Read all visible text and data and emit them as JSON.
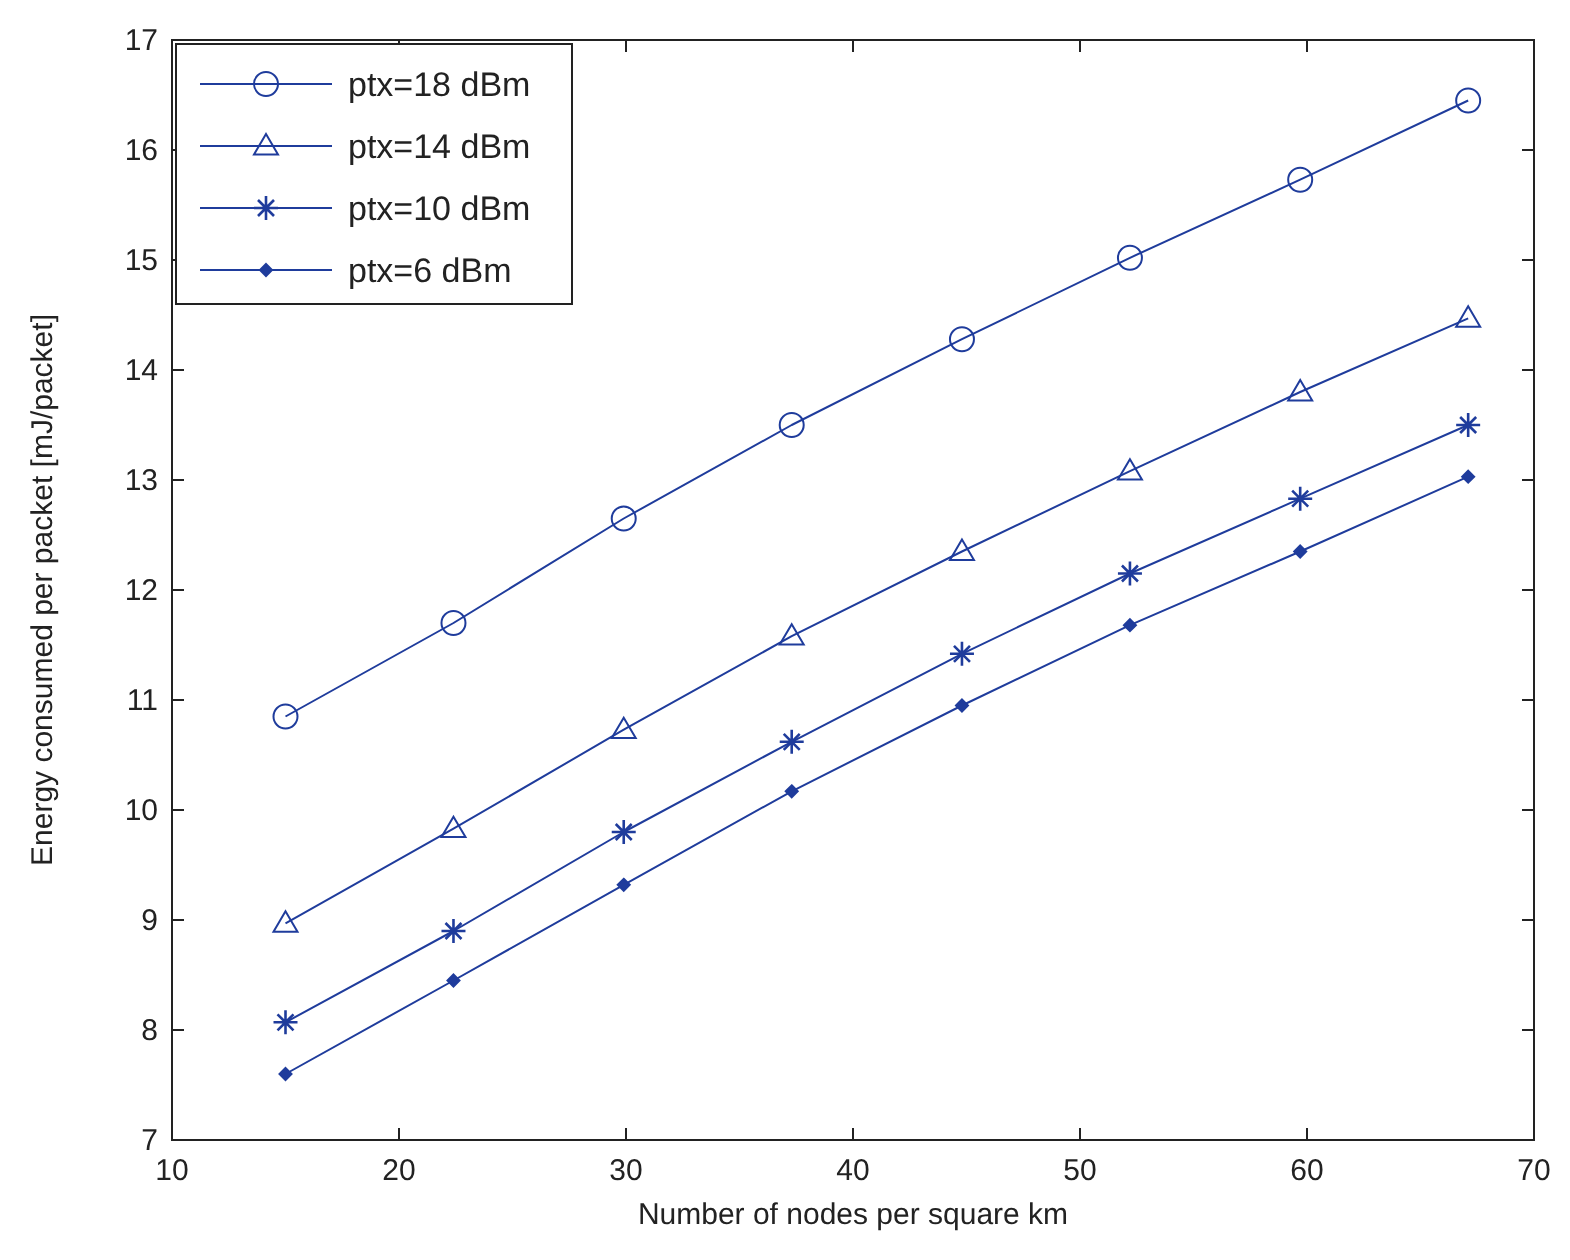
{
  "chart_data": {
    "type": "line",
    "xlabel": "Number of nodes per square km",
    "ylabel": "Energy consumed per packet [mJ/packet]",
    "x": [
      15,
      22.4,
      29.9,
      37.3,
      44.8,
      52.2,
      59.7,
      67.1
    ],
    "series": [
      {
        "name": "ptx=18 dBm",
        "color": "#1f3c9c",
        "marker": "circle",
        "values": [
          10.85,
          11.7,
          12.65,
          13.5,
          14.28,
          15.02,
          15.73,
          16.45
        ]
      },
      {
        "name": "ptx=14 dBm",
        "color": "#1f3c9c",
        "marker": "triangle",
        "values": [
          8.97,
          9.83,
          10.73,
          11.58,
          12.35,
          13.08,
          13.8,
          14.47
        ]
      },
      {
        "name": "ptx=10 dBm",
        "color": "#1f3c9c",
        "marker": "cross",
        "values": [
          8.07,
          8.9,
          9.8,
          10.62,
          11.42,
          12.15,
          12.83,
          13.5
        ]
      },
      {
        "name": "ptx=6 dBm",
        "color": "#1f3c9c",
        "marker": "diamond",
        "values": [
          7.6,
          8.45,
          9.32,
          10.17,
          10.95,
          11.68,
          12.35,
          13.03
        ]
      }
    ],
    "xlim": [
      10,
      70
    ],
    "xticks": [
      10,
      20,
      30,
      40,
      50,
      60,
      70
    ],
    "ylim": [
      7,
      17
    ],
    "yticks": [
      7,
      8,
      9,
      10,
      11,
      12,
      13,
      14,
      15,
      16,
      17
    ],
    "grid": false,
    "legend": "top left",
    "line_style": "solid"
  }
}
